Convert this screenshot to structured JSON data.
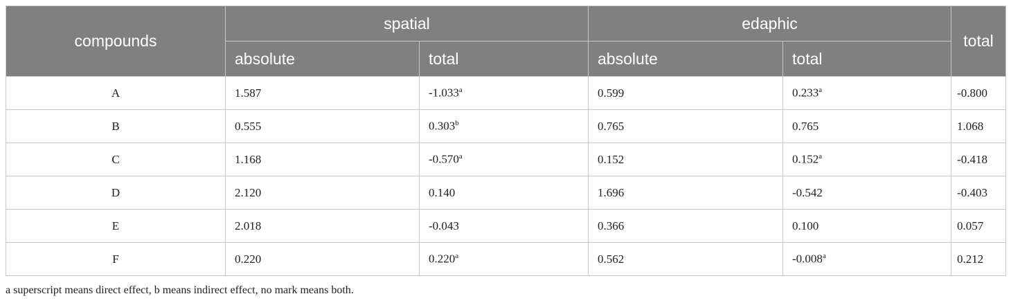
{
  "table": {
    "header": {
      "compounds": "compounds",
      "groups": [
        {
          "label": "spatial",
          "columns": [
            "absolute",
            "total"
          ]
        },
        {
          "label": "edaphic",
          "columns": [
            "absolute",
            "total"
          ]
        }
      ],
      "total": "total"
    },
    "rows": [
      {
        "compound": "A",
        "cells": [
          {
            "text": "1.587"
          },
          {
            "text": "-1.033",
            "sup": "a"
          },
          {
            "text": "0.599"
          },
          {
            "text": "0.233",
            "sup": "a"
          }
        ],
        "total": "-0.800"
      },
      {
        "compound": "B",
        "cells": [
          {
            "text": "0.555"
          },
          {
            "text": "0.303",
            "sup": "b"
          },
          {
            "text": "0.765"
          },
          {
            "text": "0.765"
          }
        ],
        "total": "1.068"
      },
      {
        "compound": "C",
        "cells": [
          {
            "text": "1.168"
          },
          {
            "text": "-0.570",
            "sup": "a"
          },
          {
            "text": "0.152"
          },
          {
            "text": "0.152",
            "sup": "a"
          }
        ],
        "total": "-0.418"
      },
      {
        "compound": "D",
        "cells": [
          {
            "text": "2.120"
          },
          {
            "text": "0.140"
          },
          {
            "text": "1.696"
          },
          {
            "text": "-0.542"
          }
        ],
        "total": "-0.403"
      },
      {
        "compound": "E",
        "cells": [
          {
            "text": "2.018"
          },
          {
            "text": "-0.043"
          },
          {
            "text": "0.366"
          },
          {
            "text": "0.100"
          }
        ],
        "total": "0.057"
      },
      {
        "compound": "F",
        "cells": [
          {
            "text": "0.220"
          },
          {
            "text": "0.220",
            "sup": "a"
          },
          {
            "text": "0.562"
          },
          {
            "text": "-0.008",
            "sup": "a"
          }
        ],
        "total": "0.212"
      }
    ],
    "footnote": "a superscript means direct effect, b means indirect effect, no mark means both."
  }
}
